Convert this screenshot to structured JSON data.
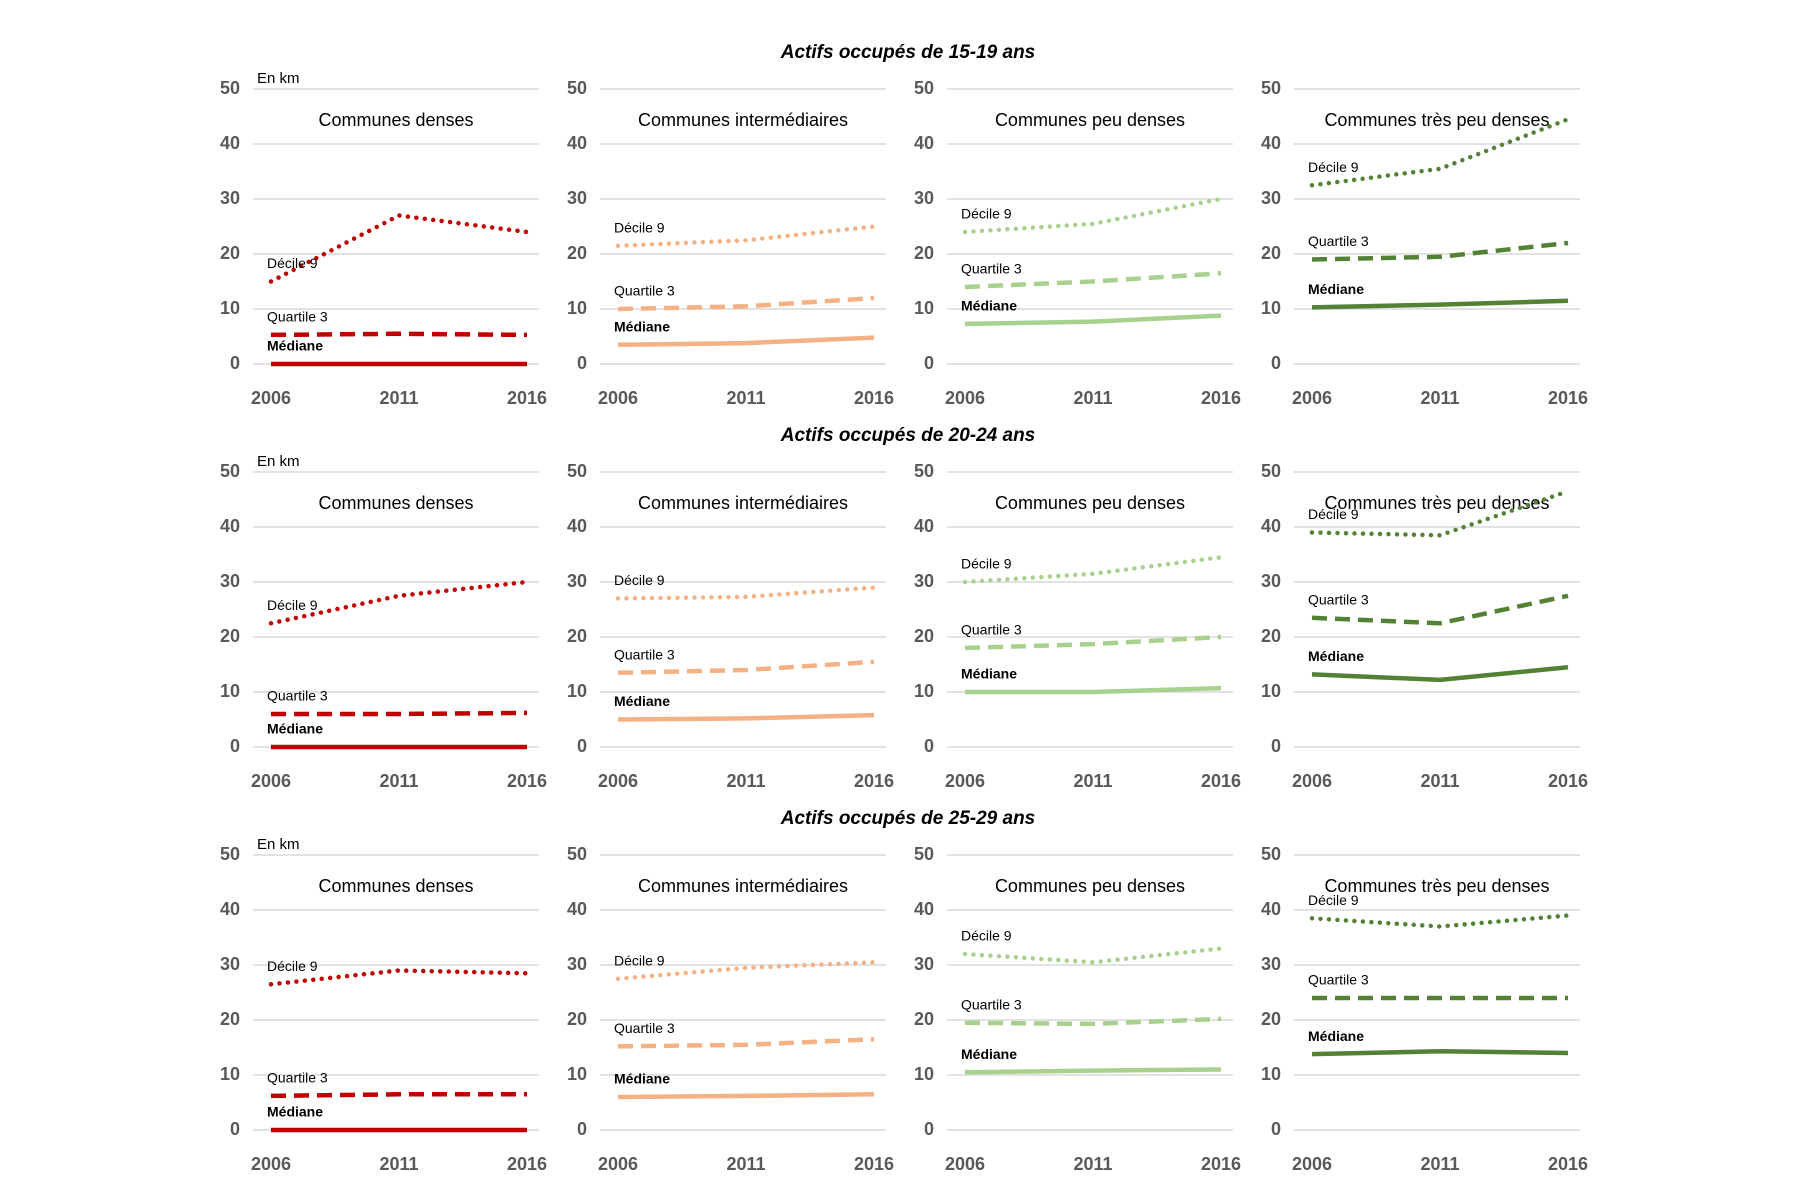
{
  "chart_data": [
    {
      "type": "line",
      "group_title": "Actifs occupés de 15-19 ans",
      "y_unit_label": "En km",
      "title": "Communes denses",
      "categories": [
        "2006",
        "2011",
        "2016"
      ],
      "ylim": [
        0,
        50
      ],
      "yticks": [
        0,
        10,
        20,
        30,
        40,
        50
      ],
      "grid": true,
      "series": [
        {
          "name": "Décile 9",
          "color": "#c00000",
          "dash": "dotted",
          "values": [
            15,
            27,
            24
          ]
        },
        {
          "name": "Quartile 3",
          "color": "#c00000",
          "dash": "dashed",
          "values": [
            5.3,
            5.5,
            5.3
          ]
        },
        {
          "name": "Médiane",
          "color": "#c00000",
          "dash": "solid",
          "values": [
            0,
            0,
            0
          ]
        }
      ]
    },
    {
      "type": "line",
      "title": "Communes intermédiaires",
      "categories": [
        "2006",
        "2011",
        "2016"
      ],
      "ylim": [
        0,
        50
      ],
      "yticks": [
        0,
        10,
        20,
        30,
        40,
        50
      ],
      "grid": true,
      "series": [
        {
          "name": "Décile 9",
          "color": "#f4b183",
          "dash": "dotted",
          "values": [
            21.5,
            22.5,
            25
          ]
        },
        {
          "name": "Quartile 3",
          "color": "#f4b183",
          "dash": "dashed",
          "values": [
            10,
            10.5,
            12
          ]
        },
        {
          "name": "Médiane",
          "color": "#f4b183",
          "dash": "solid",
          "values": [
            3.5,
            3.8,
            4.8
          ]
        }
      ]
    },
    {
      "type": "line",
      "title": "Communes peu denses",
      "categories": [
        "2006",
        "2011",
        "2016"
      ],
      "ylim": [
        0,
        50
      ],
      "yticks": [
        0,
        10,
        20,
        30,
        40,
        50
      ],
      "grid": true,
      "series": [
        {
          "name": "Décile 9",
          "color": "#a9d18e",
          "dash": "dotted",
          "values": [
            24,
            25.5,
            30
          ]
        },
        {
          "name": "Quartile 3",
          "color": "#a9d18e",
          "dash": "dashed",
          "values": [
            14,
            15,
            16.5
          ]
        },
        {
          "name": "Médiane",
          "color": "#a9d18e",
          "dash": "solid",
          "values": [
            7.3,
            7.7,
            8.8
          ]
        }
      ]
    },
    {
      "type": "line",
      "title": "Communes très peu denses",
      "categories": [
        "2006",
        "2011",
        "2016"
      ],
      "ylim": [
        0,
        50
      ],
      "yticks": [
        0,
        10,
        20,
        30,
        40,
        50
      ],
      "grid": true,
      "series": [
        {
          "name": "Décile 9",
          "color": "#548235",
          "dash": "dotted",
          "values": [
            32.5,
            35.5,
            44.5
          ]
        },
        {
          "name": "Quartile 3",
          "color": "#548235",
          "dash": "dashed",
          "values": [
            19,
            19.5,
            22
          ]
        },
        {
          "name": "Médiane",
          "color": "#548235",
          "dash": "solid",
          "values": [
            10.3,
            10.8,
            11.5
          ]
        }
      ]
    },
    {
      "type": "line",
      "group_title": "Actifs occupés de 20-24 ans",
      "y_unit_label": "En km",
      "title": "Communes denses",
      "categories": [
        "2006",
        "2011",
        "2016"
      ],
      "ylim": [
        0,
        50
      ],
      "yticks": [
        0,
        10,
        20,
        30,
        40,
        50
      ],
      "grid": true,
      "series": [
        {
          "name": "Décile 9",
          "color": "#c00000",
          "dash": "dotted",
          "values": [
            22.5,
            27.5,
            30
          ]
        },
        {
          "name": "Quartile 3",
          "color": "#c00000",
          "dash": "dashed",
          "values": [
            6,
            6,
            6.2
          ]
        },
        {
          "name": "Médiane",
          "color": "#c00000",
          "dash": "solid",
          "values": [
            0,
            0,
            0
          ]
        }
      ]
    },
    {
      "type": "line",
      "title": "Communes intermédiaires",
      "categories": [
        "2006",
        "2011",
        "2016"
      ],
      "ylim": [
        0,
        50
      ],
      "yticks": [
        0,
        10,
        20,
        30,
        40,
        50
      ],
      "grid": true,
      "series": [
        {
          "name": "Décile 9",
          "color": "#f4b183",
          "dash": "dotted",
          "values": [
            27,
            27.3,
            29
          ]
        },
        {
          "name": "Quartile 3",
          "color": "#f4b183",
          "dash": "dashed",
          "values": [
            13.5,
            14,
            15.5
          ]
        },
        {
          "name": "Médiane",
          "color": "#f4b183",
          "dash": "solid",
          "values": [
            5,
            5.2,
            5.8
          ]
        }
      ]
    },
    {
      "type": "line",
      "title": "Communes peu denses",
      "categories": [
        "2006",
        "2011",
        "2016"
      ],
      "ylim": [
        0,
        50
      ],
      "yticks": [
        0,
        10,
        20,
        30,
        40,
        50
      ],
      "grid": true,
      "series": [
        {
          "name": "Décile 9",
          "color": "#a9d18e",
          "dash": "dotted",
          "values": [
            30,
            31.5,
            34.5
          ]
        },
        {
          "name": "Quartile 3",
          "color": "#a9d18e",
          "dash": "dashed",
          "values": [
            18,
            18.7,
            20
          ]
        },
        {
          "name": "Médiane",
          "color": "#a9d18e",
          "dash": "solid",
          "values": [
            10,
            10,
            10.7
          ]
        }
      ]
    },
    {
      "type": "line",
      "title": "Communes très peu denses",
      "categories": [
        "2006",
        "2011",
        "2016"
      ],
      "ylim": [
        0,
        50
      ],
      "yticks": [
        0,
        10,
        20,
        30,
        40,
        50
      ],
      "grid": true,
      "series": [
        {
          "name": "Décile 9",
          "color": "#548235",
          "dash": "dotted",
          "values": [
            39,
            38.5,
            46.5
          ]
        },
        {
          "name": "Quartile 3",
          "color": "#548235",
          "dash": "dashed",
          "values": [
            23.5,
            22.5,
            27.5
          ]
        },
        {
          "name": "Médiane",
          "color": "#548235",
          "dash": "solid",
          "values": [
            13.2,
            12.2,
            14.5
          ]
        }
      ]
    },
    {
      "type": "line",
      "group_title": "Actifs occupés de 25-29 ans",
      "y_unit_label": "En km",
      "title": "Communes denses",
      "categories": [
        "2006",
        "2011",
        "2016"
      ],
      "ylim": [
        0,
        50
      ],
      "yticks": [
        0,
        10,
        20,
        30,
        40,
        50
      ],
      "grid": true,
      "series": [
        {
          "name": "Décile 9",
          "color": "#c00000",
          "dash": "dotted",
          "values": [
            26.5,
            29,
            28.5
          ]
        },
        {
          "name": "Quartile 3",
          "color": "#c00000",
          "dash": "dashed",
          "values": [
            6.2,
            6.5,
            6.5
          ]
        },
        {
          "name": "Médiane",
          "color": "#c00000",
          "dash": "solid",
          "values": [
            0,
            0,
            0
          ]
        }
      ]
    },
    {
      "type": "line",
      "title": "Communes intermédiaires",
      "categories": [
        "2006",
        "2011",
        "2016"
      ],
      "ylim": [
        0,
        50
      ],
      "yticks": [
        0,
        10,
        20,
        30,
        40,
        50
      ],
      "grid": true,
      "series": [
        {
          "name": "Décile 9",
          "color": "#f4b183",
          "dash": "dotted",
          "values": [
            27.5,
            29.5,
            30.5
          ]
        },
        {
          "name": "Quartile 3",
          "color": "#f4b183",
          "dash": "dashed",
          "values": [
            15.2,
            15.5,
            16.5
          ]
        },
        {
          "name": "Médiane",
          "color": "#f4b183",
          "dash": "solid",
          "values": [
            6,
            6.2,
            6.5
          ]
        }
      ]
    },
    {
      "type": "line",
      "title": "Communes peu denses",
      "categories": [
        "2006",
        "2011",
        "2016"
      ],
      "ylim": [
        0,
        50
      ],
      "yticks": [
        0,
        10,
        20,
        30,
        40,
        50
      ],
      "grid": true,
      "series": [
        {
          "name": "Décile 9",
          "color": "#a9d18e",
          "dash": "dotted",
          "values": [
            32,
            30.5,
            33
          ]
        },
        {
          "name": "Quartile 3",
          "color": "#a9d18e",
          "dash": "dashed",
          "values": [
            19.5,
            19.3,
            20.2
          ]
        },
        {
          "name": "Médiane",
          "color": "#a9d18e",
          "dash": "solid",
          "values": [
            10.5,
            10.8,
            11
          ]
        }
      ]
    },
    {
      "type": "line",
      "title": "Communes très peu denses",
      "categories": [
        "2006",
        "2011",
        "2016"
      ],
      "ylim": [
        0,
        50
      ],
      "yticks": [
        0,
        10,
        20,
        30,
        40,
        50
      ],
      "grid": true,
      "series": [
        {
          "name": "Décile 9",
          "color": "#548235",
          "dash": "dotted",
          "values": [
            38.5,
            37,
            39
          ]
        },
        {
          "name": "Quartile 3",
          "color": "#548235",
          "dash": "dashed",
          "values": [
            24,
            24,
            24
          ]
        },
        {
          "name": "Médiane",
          "color": "#548235",
          "dash": "solid",
          "values": [
            13.8,
            14.3,
            14
          ]
        }
      ]
    }
  ]
}
